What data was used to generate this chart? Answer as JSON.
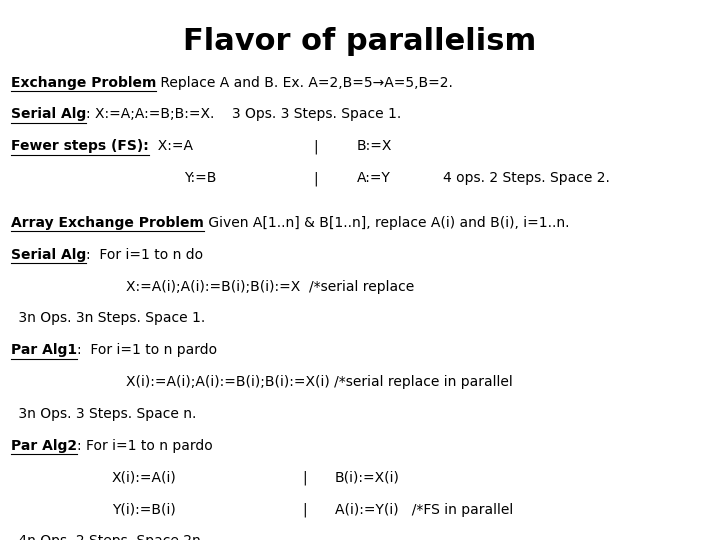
{
  "title": "Flavor of parallelism",
  "bg_color": "#ffffff",
  "text_color": "#000000",
  "title_fontsize": 22,
  "body_fontsize": 10.0,
  "font_family": "Arial"
}
